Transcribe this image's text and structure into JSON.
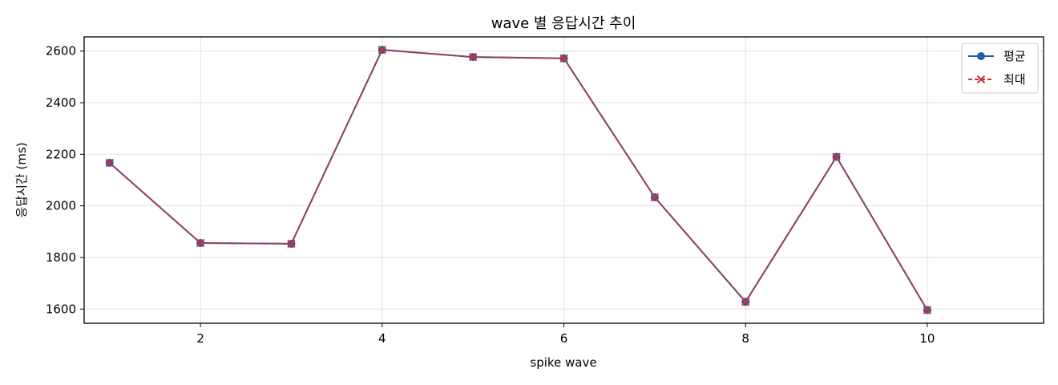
{
  "chart_data": {
    "type": "line",
    "title": "wave 별 응답시간 추이",
    "xlabel": "spike wave",
    "ylabel": "응답시간 (ms)",
    "x": [
      1,
      2,
      3,
      4,
      5,
      6,
      7,
      8,
      9,
      10
    ],
    "xlim": [
      0.72,
      11.28
    ],
    "ylim": [
      1545,
      2655
    ],
    "xticks": [
      2,
      4,
      6,
      8,
      10
    ],
    "yticks": [
      1600,
      1800,
      2000,
      2200,
      2400,
      2600
    ],
    "grid": true,
    "legend_position": "top-right",
    "series": [
      {
        "name": "평균",
        "values": [
          2167,
          1856,
          1853,
          2605,
          2577,
          2572,
          2033,
          1628,
          2190,
          1596
        ],
        "color": "#1f5fa8",
        "marker": "circle",
        "linestyle": "solid"
      },
      {
        "name": "최대",
        "values": [
          2167,
          1856,
          1853,
          2605,
          2577,
          2572,
          2033,
          1628,
          2190,
          1596
        ],
        "color": "#d0323a",
        "marker": "x",
        "linestyle": "dashed"
      }
    ]
  }
}
